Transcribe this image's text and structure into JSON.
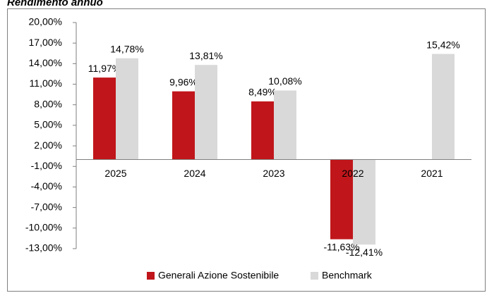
{
  "chart_data": {
    "type": "bar",
    "title": "Rendimento annuo",
    "categories": [
      "2025",
      "2024",
      "2023",
      "2022",
      "2021"
    ],
    "series": [
      {
        "name": "Generali Azione Sostenibile",
        "color": "#c0161b",
        "values": [
          11.97,
          9.96,
          8.49,
          -11.63,
          null
        ],
        "value_labels": [
          "11,97%",
          "9,96%",
          "8,49%",
          "-11,63%",
          null
        ]
      },
      {
        "name": "Benchmark",
        "color": "#d9d9d9",
        "values": [
          14.78,
          13.81,
          10.08,
          -12.41,
          15.42
        ],
        "value_labels": [
          "14,78%",
          "13,81%",
          "10,08%",
          "-12,41%",
          "15,42%"
        ]
      }
    ],
    "ylim": [
      -13,
      20
    ],
    "yticks": [
      {
        "value": -13,
        "label": "-13,00%"
      },
      {
        "value": -10,
        "label": "-10,00%"
      },
      {
        "value": -7,
        "label": "-7,00%"
      },
      {
        "value": -4,
        "label": "-4,00%"
      },
      {
        "value": -1,
        "label": "-1,00%"
      },
      {
        "value": 2,
        "label": "2,00%"
      },
      {
        "value": 5,
        "label": "5,00%"
      },
      {
        "value": 8,
        "label": "8,00%"
      },
      {
        "value": 11,
        "label": "11,00%"
      },
      {
        "value": 14,
        "label": "14,00%"
      },
      {
        "value": 17,
        "label": "17,00%"
      },
      {
        "value": 20,
        "label": "20,00%"
      }
    ],
    "grid": false,
    "legend": "bottom"
  }
}
